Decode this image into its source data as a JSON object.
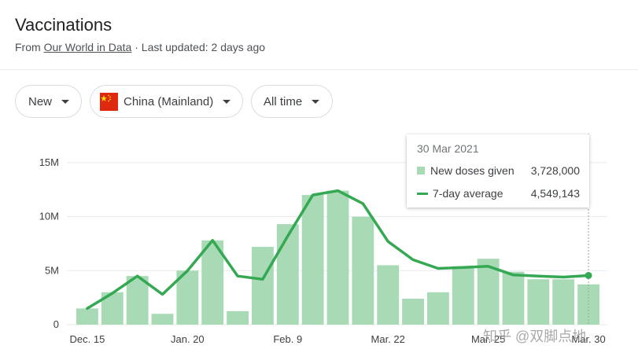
{
  "header": {
    "title": "Vaccinations",
    "source_prefix": "From",
    "source_link": "Our World in Data",
    "updated": "· Last updated: 2 days ago"
  },
  "filters": {
    "metric": "New",
    "country": "China (Mainland)",
    "range": "All time"
  },
  "tooltip": {
    "date": "30 Mar 2021",
    "doses_label": "New doses given",
    "doses_value": "3,728,000",
    "avg_label": "7-day average",
    "avg_value": "4,549,143"
  },
  "watermark": "知乎 @双脚点地",
  "chart_data": {
    "type": "bar",
    "title": "Vaccinations",
    "yticks": [
      "0",
      "5M",
      "10M",
      "15M"
    ],
    "ylim": [
      0,
      15500000
    ],
    "xticks": [
      "Dec. 15",
      "Jan. 20",
      "Feb. 9",
      "Mar. 22",
      "Mar. 25",
      "Mar. 30"
    ],
    "colors": {
      "bars": "#a8dab5",
      "line": "#34a853",
      "grid": "#e8eaed"
    },
    "series": [
      {
        "name": "New doses given",
        "type": "bar",
        "values": [
          1500000,
          3000000,
          4500000,
          1000000,
          5000000,
          7800000,
          1250000,
          7200000,
          9300000,
          12000000,
          12400000,
          10000000,
          5500000,
          2400000,
          3000000,
          5400000,
          6100000,
          4900000,
          4200000,
          4200000,
          3728000
        ]
      },
      {
        "name": "7-day average",
        "type": "line",
        "values": [
          1500000,
          2900000,
          4500000,
          2800000,
          5000000,
          7800000,
          4500000,
          4200000,
          8200000,
          12000000,
          12400000,
          11200000,
          7700000,
          6000000,
          5200000,
          5300000,
          5400000,
          4600000,
          4500000,
          4400000,
          4549143
        ]
      }
    ]
  }
}
